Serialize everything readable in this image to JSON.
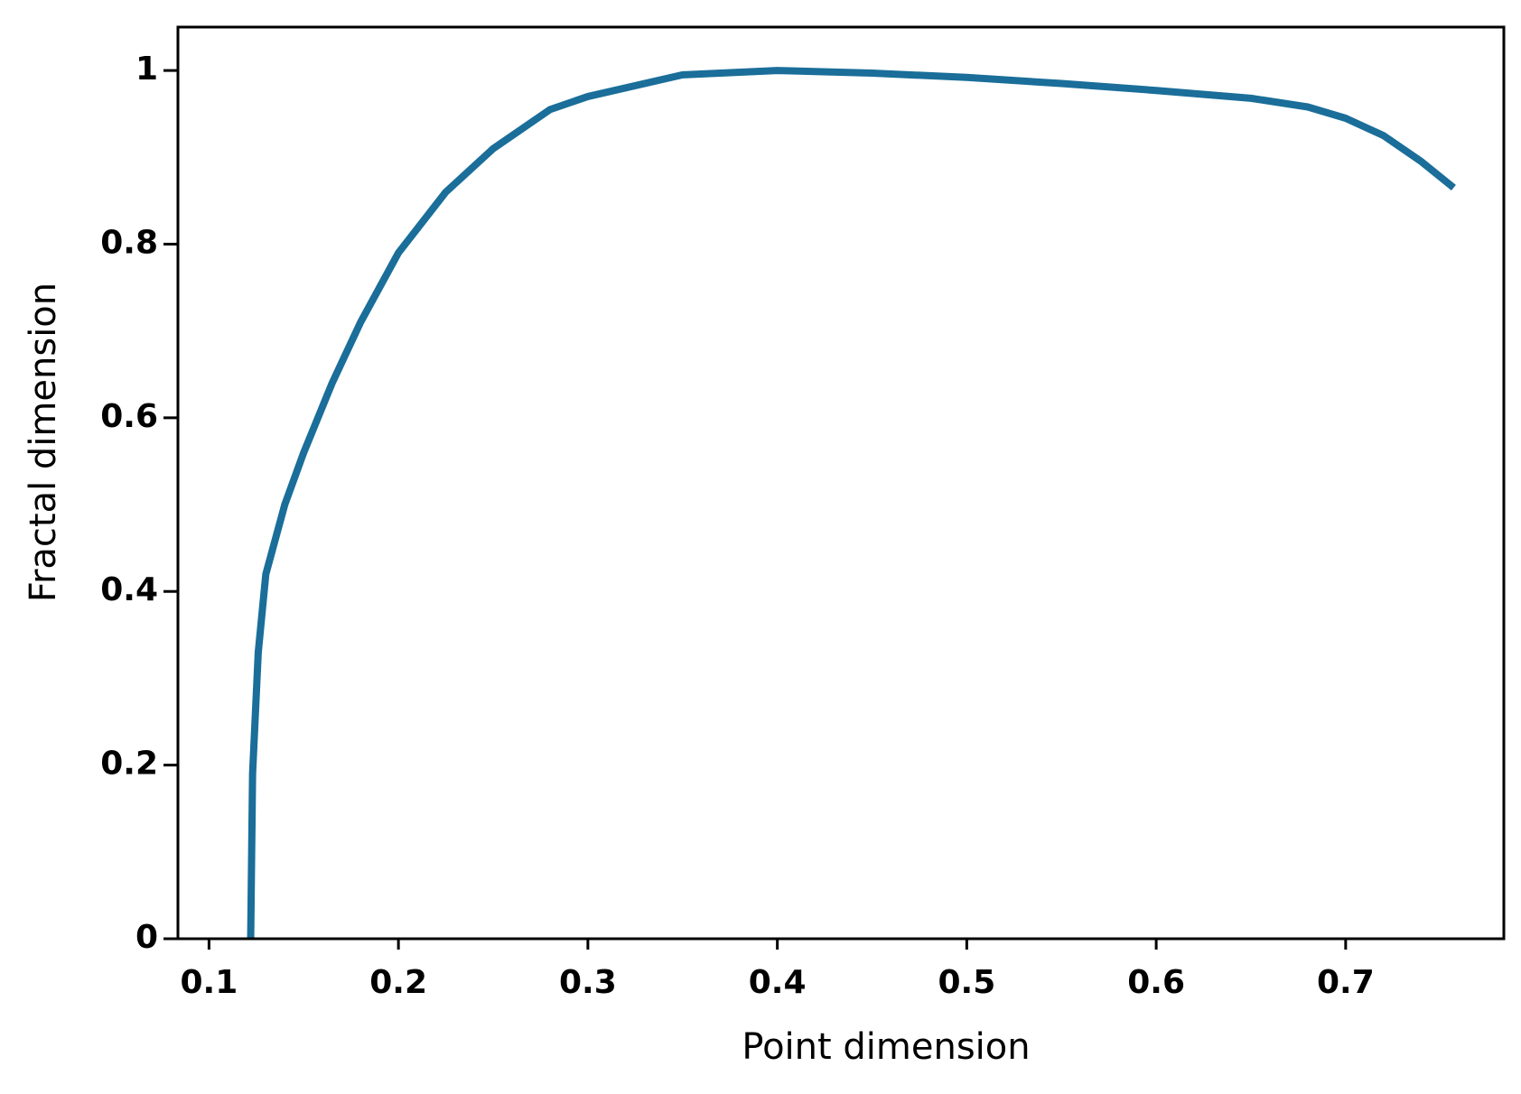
{
  "chart_data": {
    "type": "line",
    "x_label": "Point dimension",
    "y_label": "Fractal dimension",
    "x": [
      0.122,
      0.123,
      0.126,
      0.13,
      0.14,
      0.15,
      0.165,
      0.18,
      0.2,
      0.225,
      0.25,
      0.28,
      0.3,
      0.35,
      0.4,
      0.45,
      0.5,
      0.55,
      0.6,
      0.65,
      0.68,
      0.7,
      0.72,
      0.74,
      0.757
    ],
    "series": [
      {
        "color": "#1a6e99",
        "values": [
          0,
          0.19,
          0.33,
          0.42,
          0.5,
          0.56,
          0.64,
          0.71,
          0.79,
          0.86,
          0.91,
          0.955,
          0.97,
          0.995,
          1.0,
          0.997,
          0.992,
          0.985,
          0.977,
          0.968,
          0.958,
          0.945,
          0.925,
          0.895,
          0.865
        ]
      }
    ],
    "xlim": [
      0.0836,
      0.7835
    ],
    "ylim": [
      0,
      1.05
    ],
    "xticks": [
      0.1,
      0.2,
      0.3,
      0.4,
      0.5,
      0.6,
      0.7
    ],
    "yticks": [
      0,
      0.2,
      0.4,
      0.6,
      0.8,
      1
    ]
  }
}
